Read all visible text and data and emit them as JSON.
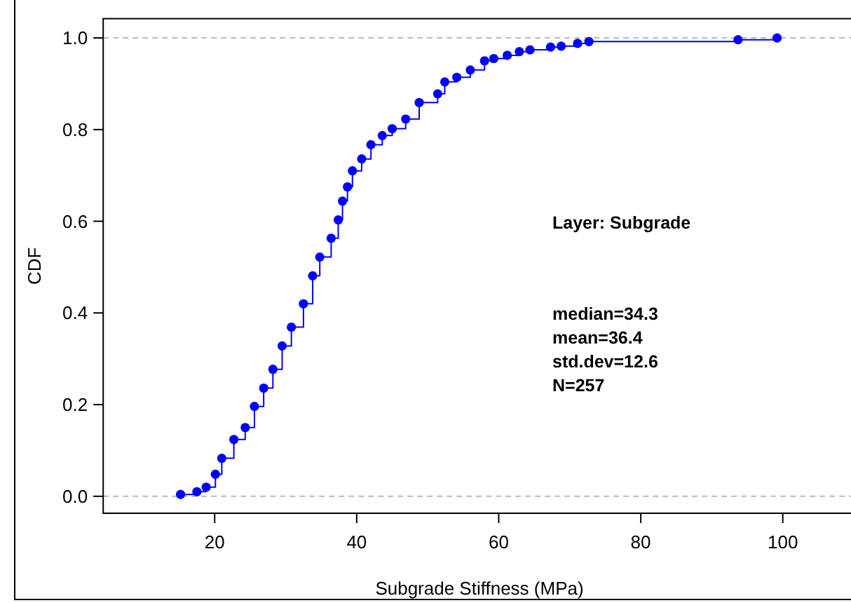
{
  "chart_data": {
    "type": "step",
    "xlabel": "Subgrade Stiffness (MPa)",
    "ylabel": "CDF",
    "annotations": [
      "Layer: Subgrade",
      "median=34.3",
      "mean=36.4",
      "std.dev=12.6",
      "N=257"
    ],
    "xlim": [
      4.3,
      110
    ],
    "ylim": [
      -0.037,
      1.042
    ],
    "xticks": [
      20,
      40,
      60,
      80,
      100
    ],
    "yticks": [
      {
        "value": 0,
        "label": "0.0"
      },
      {
        "value": 0.2,
        "label": "0.2"
      },
      {
        "value": 0.4,
        "label": "0.4"
      },
      {
        "value": 0.6,
        "label": "0.6"
      },
      {
        "value": 0.8,
        "label": "0.8"
      },
      {
        "value": 1,
        "label": "1.0"
      }
    ],
    "grid": false,
    "marker": "circle",
    "line_style": "solid",
    "ref_lines": [
      {
        "axis": "y",
        "value": 0,
        "color": "#bbbbbb",
        "line_style": "dashed"
      },
      {
        "axis": "y",
        "value": 1,
        "color": "#bbbbbb",
        "line_style": "dashed"
      }
    ],
    "series": [
      {
        "color": "#0000ff",
        "x": [
          15.2,
          17.5,
          18.8,
          20.1,
          21.0,
          22.7,
          24.3,
          25.6,
          26.9,
          28.2,
          29.5,
          30.8,
          32.5,
          33.8,
          34.8,
          36.4,
          37.4,
          38.0,
          38.7,
          39.4,
          40.7,
          42.0,
          43.6,
          45.0,
          46.9,
          48.8,
          51.4,
          52.4,
          54.1,
          56.0,
          58.0,
          59.3,
          61.2,
          62.9,
          64.4,
          67.3,
          68.8,
          71.1,
          72.7,
          93.7,
          99.2
        ],
        "values": [
          0.004,
          0.01,
          0.02,
          0.048,
          0.083,
          0.124,
          0.15,
          0.196,
          0.236,
          0.277,
          0.328,
          0.369,
          0.42,
          0.481,
          0.522,
          0.563,
          0.603,
          0.644,
          0.675,
          0.71,
          0.736,
          0.767,
          0.787,
          0.802,
          0.823,
          0.859,
          0.878,
          0.904,
          0.914,
          0.93,
          0.95,
          0.955,
          0.962,
          0.97,
          0.974,
          0.98,
          0.982,
          0.988,
          0.992,
          0.996,
          1.0
        ]
      }
    ]
  }
}
